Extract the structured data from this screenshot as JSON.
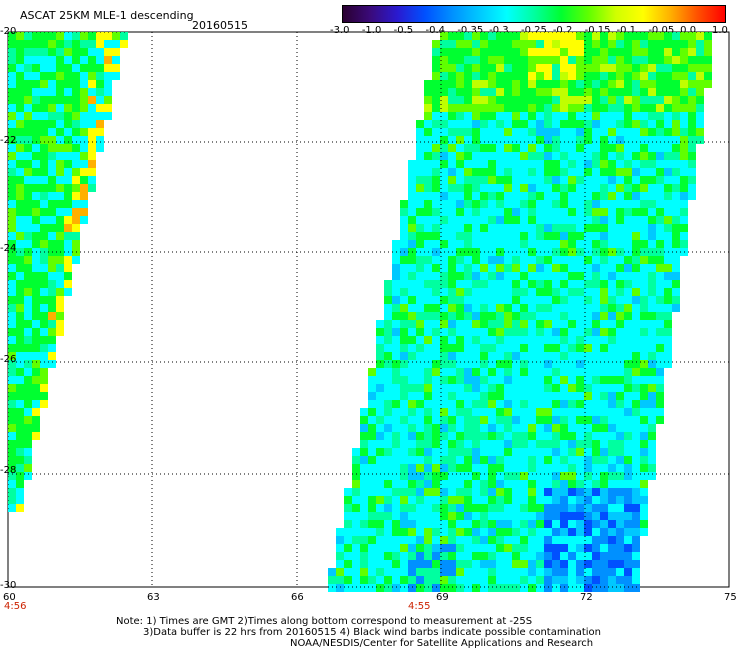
{
  "header": {
    "title": "ASCAT 25KM MLE-1 descending",
    "date": "20160515"
  },
  "colorbar": {
    "labels": [
      "-3.0",
      "-1.0",
      "-0.5",
      "-0.4",
      "-0.35",
      "-0.3",
      "-0.25",
      "-0.2",
      "-0.15",
      "-0.1",
      "-0.05",
      "0.0",
      "1.0"
    ],
    "colors": [
      "#2a0030",
      "#3a0a7a",
      "#2a1ad0",
      "#0050ff",
      "#0090ff",
      "#00c8ff",
      "#00ffff",
      "#00ffa0",
      "#00ff30",
      "#60ff00",
      "#d0ff00",
      "#ffff00",
      "#ffb000",
      "#ff5000",
      "#ff0000"
    ]
  },
  "axes": {
    "y_labels": [
      "-20",
      "-22",
      "-24",
      "-26",
      "-28",
      "-30"
    ],
    "x_labels": [
      "60",
      "63",
      "66",
      "69",
      "72",
      "75"
    ],
    "time_labels": [
      "4:56",
      "4:55"
    ]
  },
  "footer": {
    "line1": "Note: 1) Times are GMT 2)Times along bottom correspond to measurement at -25S",
    "line2": "3)Data buffer is 22 hrs from 20160515 4) Black wind barbs indicate possible contamination",
    "line3": "NOAA/NESDIS/Center for Satellite Applications and Research"
  },
  "palette": {
    "cyan": "#00ffff",
    "aqua": "#00ffa0",
    "green": "#00ff30",
    "lime": "#60ff00",
    "yellowgreen": "#c0ff00",
    "yellow": "#ffff00",
    "orange": "#ffb000",
    "blue_light": "#00c8ff",
    "blue": "#0090ff",
    "blue_dark": "#0050ff"
  }
}
